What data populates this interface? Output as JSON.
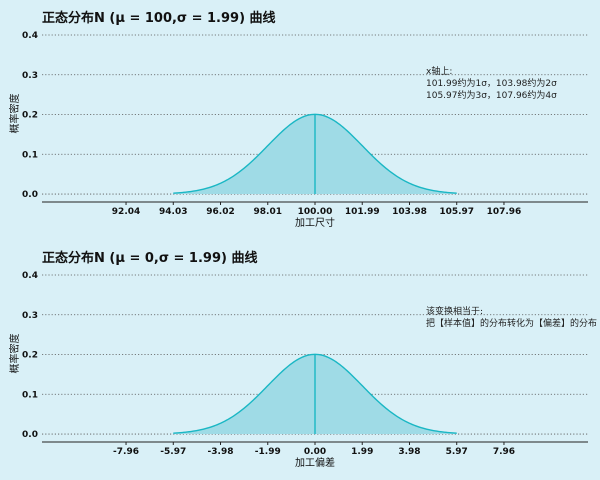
{
  "colors": {
    "background": "#d9f0f7",
    "curve": "#1ab7c4",
    "fill": "#9fdbe6",
    "grid": "#555555",
    "axis": "#222222"
  },
  "chart_data": [
    {
      "type": "area",
      "title": "正态分布N (μ = 100,σ = 1.99)  曲线",
      "xlabel": "加工尺寸",
      "ylabel": "概率密度",
      "mu": 100,
      "sigma": 1.99,
      "xlim": [
        88.5,
        111.5
      ],
      "ylim": [
        -0.02,
        0.4
      ],
      "grid": "horizontal dotted",
      "xticks": [
        92.04,
        94.03,
        96.02,
        98.01,
        100.0,
        101.99,
        103.98,
        105.97,
        107.96
      ],
      "xtick_labels": [
        "92.04",
        "94.03",
        "96.02",
        "98.01",
        "100.00",
        "101.99",
        "103.98",
        "105.97",
        "107.96"
      ],
      "yticks": [
        0.0,
        0.1,
        0.2,
        0.3,
        0.4
      ],
      "ytick_labels": [
        "0.0",
        "0.1",
        "0.2",
        "0.3",
        "0.4"
      ],
      "curve_range": [
        94.03,
        105.97
      ],
      "vline_x": 100.0,
      "annotation": [
        "x轴上:",
        "101.99约为1σ，103.98约为2σ",
        "105.97约为3σ，107.96约为4σ"
      ]
    },
    {
      "type": "area",
      "title": "正态分布N (μ = 0,σ = 1.99)  曲线",
      "xlabel": "加工偏差",
      "ylabel": "概率密度",
      "mu": 0,
      "sigma": 1.99,
      "xlim": [
        -11.5,
        11.5
      ],
      "ylim": [
        -0.02,
        0.4
      ],
      "grid": "horizontal dotted",
      "xticks": [
        -7.96,
        -5.97,
        -3.98,
        -1.99,
        0.0,
        1.99,
        3.98,
        5.97,
        7.96
      ],
      "xtick_labels": [
        "-7.96",
        "-5.97",
        "-3.98",
        "-1.99",
        "0.00",
        "1.99",
        "3.98",
        "5.97",
        "7.96"
      ],
      "yticks": [
        0.0,
        0.1,
        0.2,
        0.3,
        0.4
      ],
      "ytick_labels": [
        "0.0",
        "0.1",
        "0.2",
        "0.3",
        "0.4"
      ],
      "curve_range": [
        -5.97,
        5.97
      ],
      "vline_x": 0.0,
      "annotation": [
        "该变换相当于:",
        "把【样本值】的分布转化为【偏差】的分布"
      ]
    }
  ]
}
